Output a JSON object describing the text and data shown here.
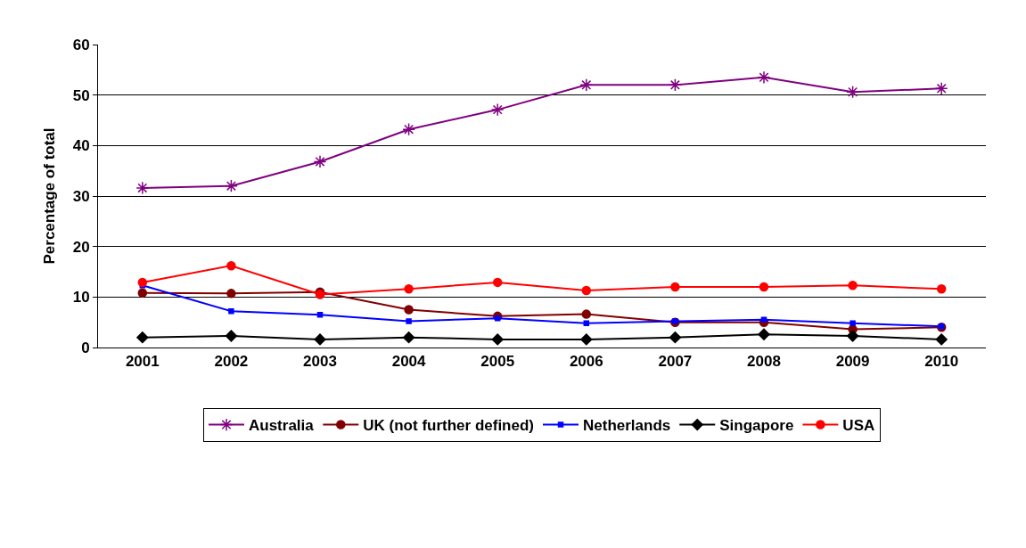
{
  "chart_data": {
    "type": "line",
    "ylabel": "Percentage of total",
    "categories": [
      "2001",
      "2002",
      "2003",
      "2004",
      "2005",
      "2006",
      "2007",
      "2008",
      "2009",
      "2010"
    ],
    "series": [
      {
        "name": "Australia",
        "color": "#800080",
        "marker": "cross",
        "values": [
          31.6,
          32,
          36.8,
          43.2,
          47.1,
          52,
          52,
          53.5,
          50.6,
          51.3
        ]
      },
      {
        "name": "UK (not further defined)",
        "color": "#800000",
        "marker": "circle",
        "values": [
          10.8,
          10.7,
          11,
          7.5,
          6.2,
          6.6,
          5,
          5,
          3.6,
          4
        ]
      },
      {
        "name": "Netherlands",
        "color": "#0000ff",
        "marker": "square",
        "values": [
          12.3,
          7.2,
          6.5,
          5.2,
          5.8,
          4.8,
          5.2,
          5.5,
          4.8,
          4.2
        ]
      },
      {
        "name": "Singapore",
        "color": "#000000",
        "marker": "diamond",
        "values": [
          2,
          2.3,
          1.6,
          2,
          1.6,
          1.6,
          2,
          2.6,
          2.3,
          1.6
        ]
      },
      {
        "name": "USA",
        "color": "#ff0000",
        "marker": "circle",
        "values": [
          12.9,
          16.2,
          10.5,
          11.6,
          12.9,
          11.3,
          12,
          12,
          12.3,
          11.6
        ]
      }
    ],
    "ylim": [
      0,
      60
    ],
    "yticks": [
      0,
      10,
      20,
      30,
      40,
      50,
      60
    ],
    "grid": "y",
    "legend": "bottom",
    "line_style": "solid"
  }
}
